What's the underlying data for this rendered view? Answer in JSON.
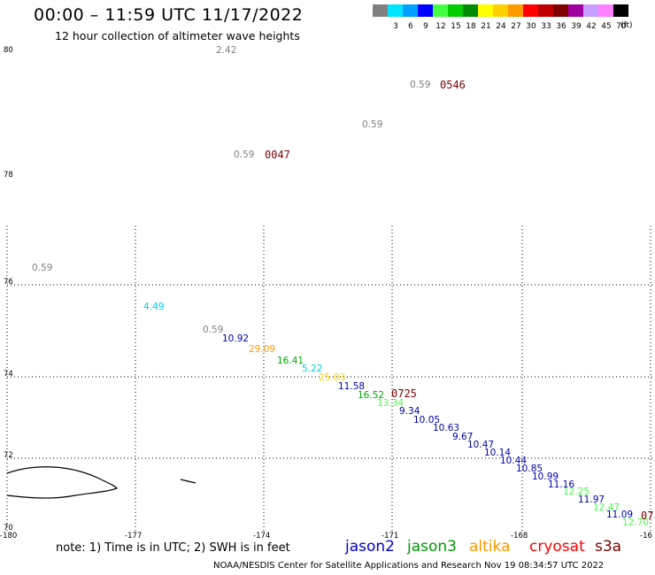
{
  "header": {
    "title": "00:00 – 11:59 UTC 11/17/2022",
    "subtitle": "12 hour collection of altimeter wave heights"
  },
  "legend": {
    "swatches": [
      {
        "label": "",
        "color": "#808080"
      },
      {
        "label": "3",
        "color": "#00e5ff"
      },
      {
        "label": "6",
        "color": "#00a0ff"
      },
      {
        "label": "9",
        "color": "#0000ff"
      },
      {
        "label": "12",
        "color": "#44ff44"
      },
      {
        "label": "15",
        "color": "#00cc00"
      },
      {
        "label": "18",
        "color": "#008c00"
      },
      {
        "label": "21",
        "color": "#ffff00"
      },
      {
        "label": "24",
        "color": "#ffd000"
      },
      {
        "label": "27",
        "color": "#ff9900"
      },
      {
        "label": "30",
        "color": "#ff0000"
      },
      {
        "label": "33",
        "color": "#c00000"
      },
      {
        "label": "36",
        "color": "#800000"
      },
      {
        "label": "39",
        "color": "#a000a0"
      },
      {
        "label": "42",
        "color": "#c8a0ff"
      },
      {
        "label": "45",
        "color": "#ff80ff"
      },
      {
        "label": "70",
        "color": "#000000"
      }
    ],
    "units": "(ft)"
  },
  "axes": {
    "lat_labels": [
      "80",
      "78",
      "76",
      "74",
      "72",
      "70"
    ],
    "lon_labels": [
      "-180",
      "-177",
      "-174",
      "-171",
      "-168",
      "-16"
    ]
  },
  "observations": [
    {
      "text": "2.42",
      "color": "#808080"
    },
    {
      "text": "0.59",
      "color": "#808080"
    },
    {
      "text": "0.59",
      "color": "#808080"
    },
    {
      "text": "0.59",
      "color": "#808080"
    },
    {
      "text": "0.59",
      "color": "#808080"
    },
    {
      "text": "4.49",
      "color": "#00d0e0"
    },
    {
      "text": "0.59",
      "color": "#808080"
    },
    {
      "text": "10.92",
      "color": "#0000aa"
    },
    {
      "text": "29.09",
      "color": "#ff9900"
    },
    {
      "text": "16.41",
      "color": "#00aa00"
    },
    {
      "text": "5.22",
      "color": "#00d0e0"
    },
    {
      "text": "25.03",
      "color": "#ffd000"
    },
    {
      "text": "11.58",
      "color": "#0000aa"
    },
    {
      "text": "16.52",
      "color": "#00aa00"
    },
    {
      "text": "13.34",
      "color": "#44ff44"
    },
    {
      "text": "9.34",
      "color": "#0000aa"
    },
    {
      "text": "10.05",
      "color": "#0000aa"
    },
    {
      "text": "10.63",
      "color": "#0000aa"
    },
    {
      "text": "9.67",
      "color": "#0000aa"
    },
    {
      "text": "10.47",
      "color": "#0000aa"
    },
    {
      "text": "10.14",
      "color": "#0000aa"
    },
    {
      "text": "10.44",
      "color": "#0000aa"
    },
    {
      "text": "10.85",
      "color": "#0000aa"
    },
    {
      "text": "10.99",
      "color": "#0000aa"
    },
    {
      "text": "11.16",
      "color": "#0000aa"
    },
    {
      "text": "12.25",
      "color": "#44ff44"
    },
    {
      "text": "11.97",
      "color": "#0000aa"
    },
    {
      "text": "12.47",
      "color": "#44ff44"
    },
    {
      "text": "11.09",
      "color": "#0000aa"
    },
    {
      "text": "12.70",
      "color": "#44ff44"
    }
  ],
  "time_labels": [
    "0546",
    "0047",
    "0725",
    "07"
  ],
  "footer": {
    "note": "note: 1) Time is in UTC; 2) SWH is in feet",
    "satellites": [
      {
        "name": "jason2",
        "color": "#0000cc"
      },
      {
        "name": "jason3",
        "color": "#009900"
      },
      {
        "name": "altika",
        "color": "#ff9900"
      },
      {
        "name": "cryosat",
        "color": "#ff0000"
      },
      {
        "name": "s3a",
        "color": "#7a0000"
      }
    ],
    "credit": "NOAA/NESDIS Center for Satellite Applications and Research    Nov 19 08:34:57 UTC 2022"
  }
}
